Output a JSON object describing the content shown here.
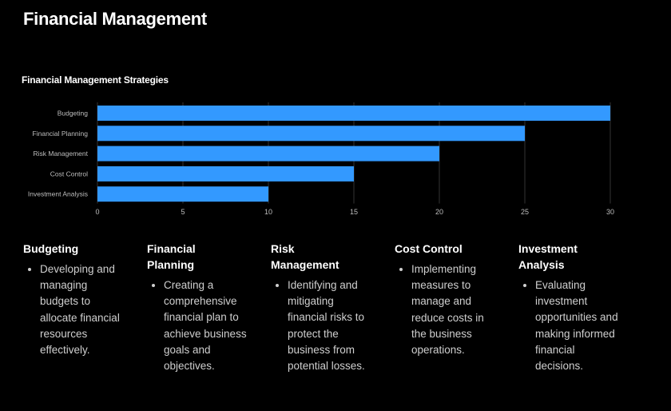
{
  "header": {
    "title": "Financial Management"
  },
  "chart_data": {
    "type": "bar",
    "orientation": "horizontal",
    "title": "Financial Management Strategies",
    "categories": [
      "Budgeting",
      "Financial Planning",
      "Risk Management",
      "Cost Control",
      "Investment Analysis"
    ],
    "values": [
      30,
      25,
      20,
      15,
      10
    ],
    "xlim": [
      0,
      30
    ],
    "xticks": [
      0,
      5,
      10,
      15,
      20,
      25,
      30
    ],
    "bar_color": "#3399ff",
    "grid": "vertical",
    "legend": "none"
  },
  "cards": [
    {
      "title": "Budgeting",
      "text": "Developing and managing budgets to allocate financial resources effectively."
    },
    {
      "title": "Financial Planning",
      "text": "Creating a comprehensive financial plan to achieve business goals and objectives."
    },
    {
      "title": "Risk Management",
      "text": "Identifying and mitigating financial risks to protect the business from potential losses."
    },
    {
      "title": "Cost Control",
      "text": "Implementing measures to manage and reduce costs in the business operations."
    },
    {
      "title": "Investment Analysis",
      "text": "Evaluating investment opportunities and making informed financial decisions."
    }
  ]
}
